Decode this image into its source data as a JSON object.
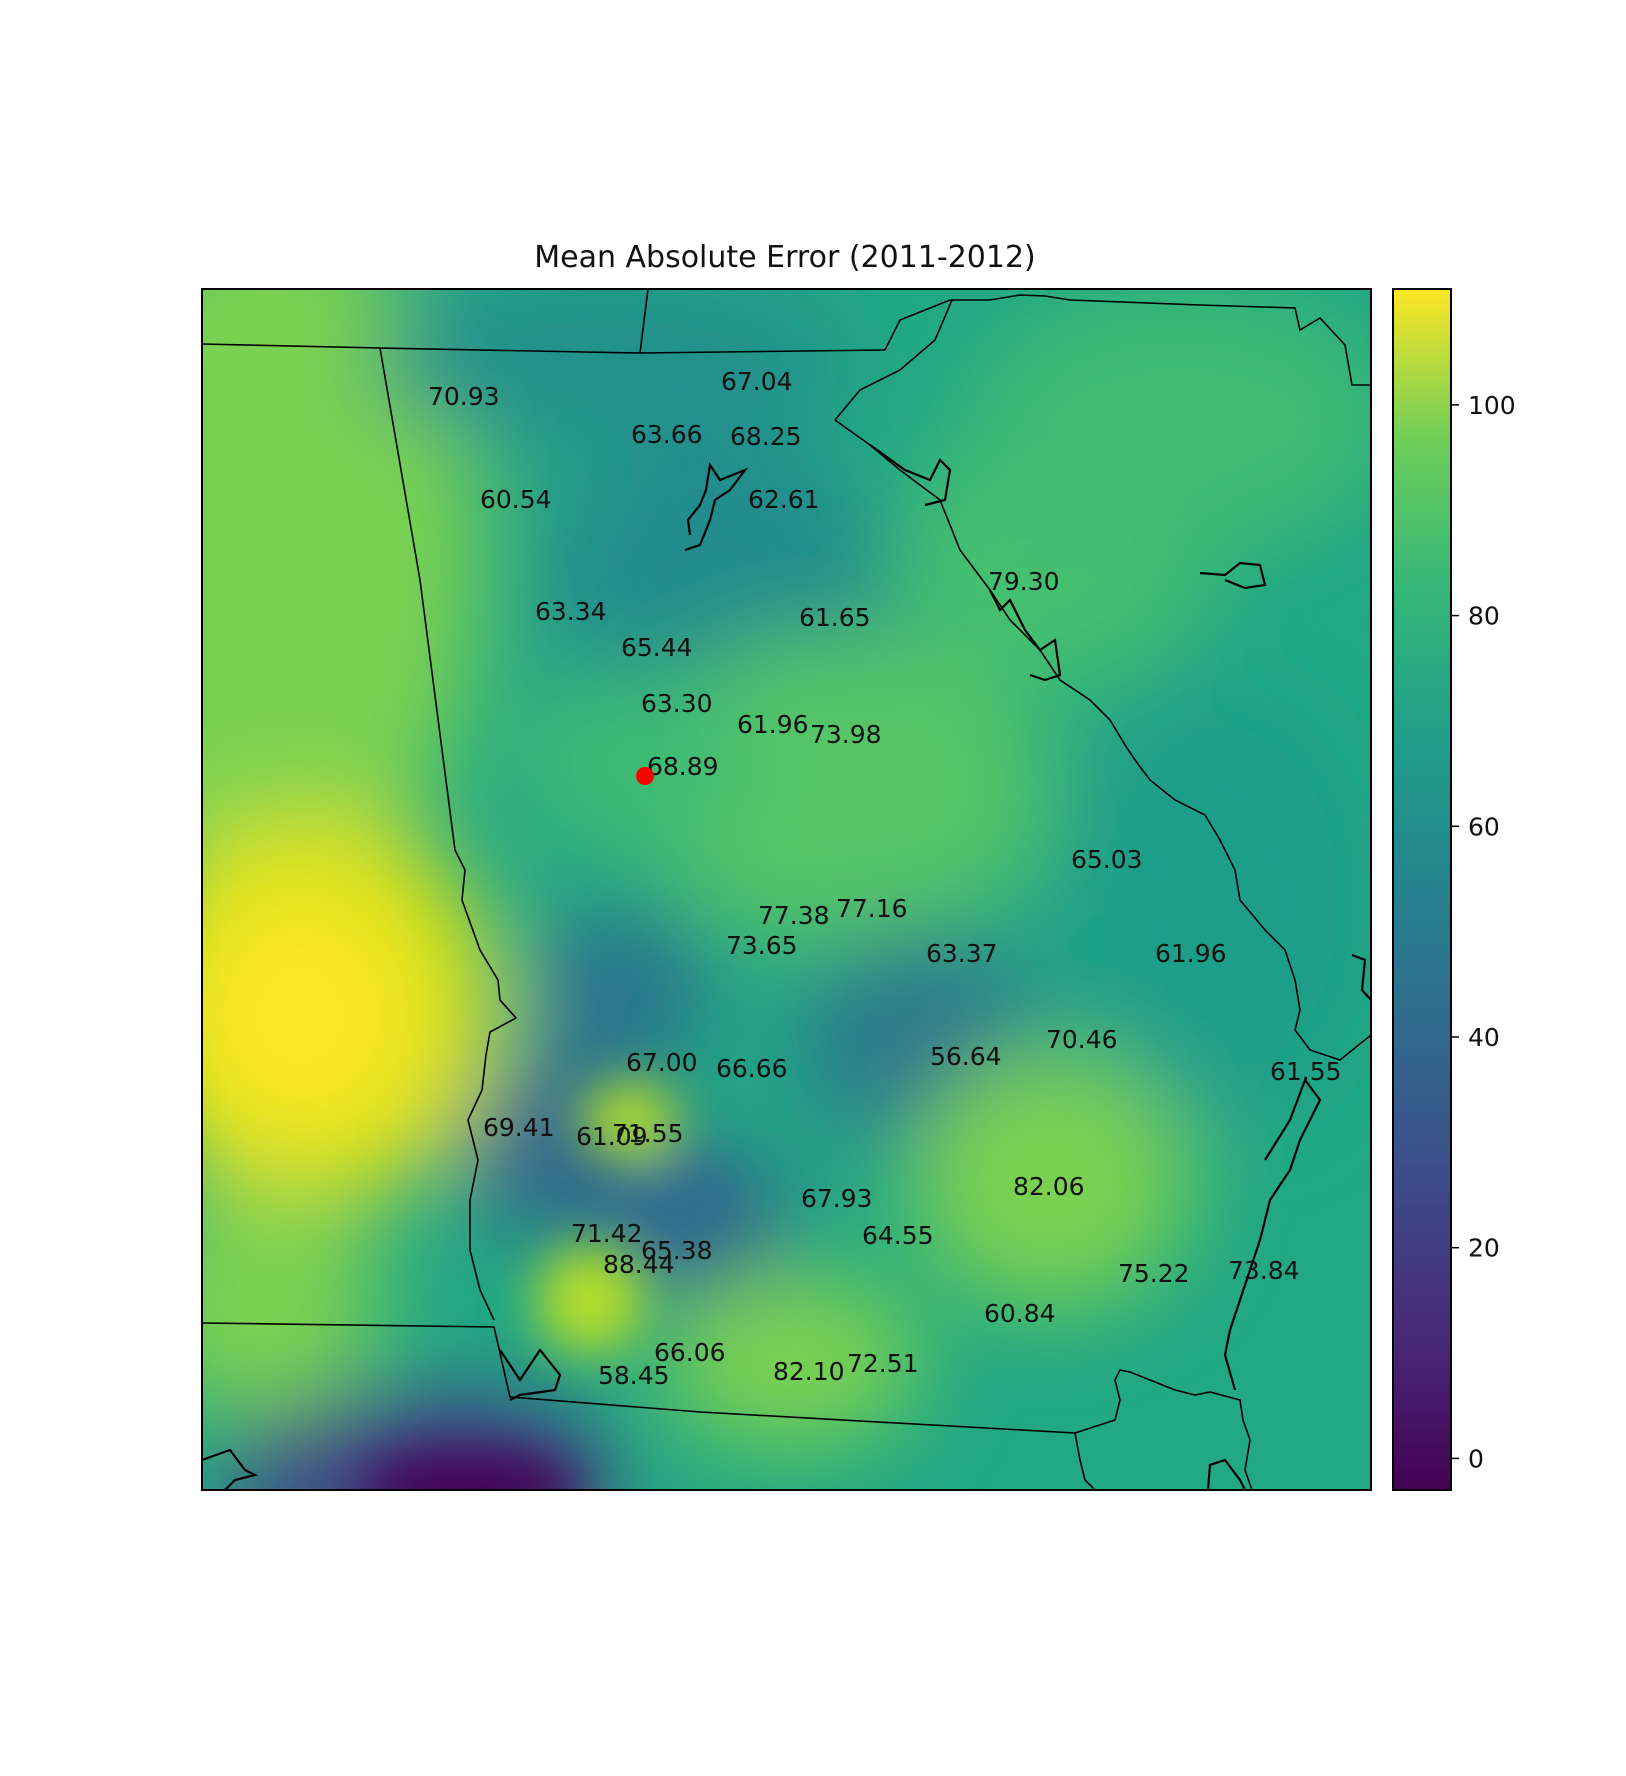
{
  "chart_data": {
    "type": "heatmap",
    "title": "Mean Absolute Error (2011-2012)",
    "colormap": "viridis",
    "colorbar": {
      "ticks": [
        0,
        20,
        40,
        60,
        80,
        100
      ],
      "range": [
        -3,
        111
      ]
    },
    "highlight_color": "#ff0000",
    "station_labels": [
      "70.93",
      "67.04",
      "63.66",
      "68.25",
      "60.54",
      "62.61",
      "79.30",
      "63.34",
      "61.65",
      "65.44",
      "63.30",
      "61.96",
      "73.98",
      "68.89",
      "65.03",
      "77.38",
      "77.16",
      "73.65",
      "63.37",
      "61.96",
      "70.46",
      "56.64",
      "67.00",
      "66.66",
      "61.55",
      "69.41",
      "61.09",
      "71.55",
      "82.06",
      "67.93",
      "71.42",
      "64.55",
      "65.38",
      "88.44",
      "75.22",
      "73.84",
      "60.84",
      "66.06",
      "72.51",
      "82.10",
      "58.45"
    ]
  }
}
